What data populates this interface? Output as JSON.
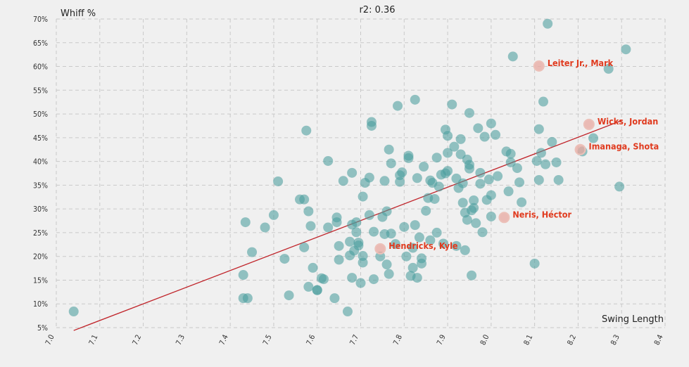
{
  "chart_data": {
    "type": "scatter",
    "title": "r2: 0.36",
    "xlabel": "Swing Length",
    "ylabel": "Whiff %",
    "xlim": [
      7.0,
      8.4
    ],
    "ylim": [
      5,
      70
    ],
    "x_ticks": [
      "7.0",
      "7.1",
      "7.2",
      "7.3",
      "7.4",
      "7.5",
      "7.6",
      "7.7",
      "7.8",
      "7.9",
      "8.0",
      "8.1",
      "8.2",
      "8.3",
      "8.4"
    ],
    "y_ticks": [
      "5%",
      "10%",
      "15%",
      "20%",
      "25%",
      "30%",
      "35%",
      "40%",
      "45%",
      "50%",
      "55%",
      "60%",
      "65%",
      "70%"
    ],
    "grid": true,
    "colors": {
      "points": "#4a9c9c",
      "highlight": "#e8a8a0",
      "label": "#e03a1e",
      "trend": "#c0242a",
      "background": "#f0f0f0"
    },
    "trendline": {
      "x": [
        7.04,
        8.3
      ],
      "y": [
        4.4,
        48.6
      ]
    },
    "highlighted": [
      {
        "name": "Leiter Jr., Mark",
        "x": 8.11,
        "y": 60.1
      },
      {
        "name": "Wicks, Jordan",
        "x": 8.225,
        "y": 47.8
      },
      {
        "name": "Imanaga, Shota",
        "x": 8.205,
        "y": 42.5
      },
      {
        "name": "Neris, Héctor",
        "x": 8.03,
        "y": 28.2
      },
      {
        "name": "Hendricks, Kyle",
        "x": 7.745,
        "y": 21.6
      }
    ],
    "points": [
      [
        7.04,
        8.4
      ],
      [
        7.43,
        11.2
      ],
      [
        7.44,
        11.2
      ],
      [
        7.43,
        16.1
      ],
      [
        7.435,
        27.2
      ],
      [
        7.45,
        20.9
      ],
      [
        7.48,
        26.1
      ],
      [
        7.5,
        28.7
      ],
      [
        7.51,
        35.8
      ],
      [
        7.525,
        19.5
      ],
      [
        7.535,
        11.8
      ],
      [
        7.56,
        32.0
      ],
      [
        7.57,
        32.0
      ],
      [
        7.57,
        21.9
      ],
      [
        7.575,
        46.5
      ],
      [
        7.58,
        13.6
      ],
      [
        7.58,
        29.5
      ],
      [
        7.585,
        26.4
      ],
      [
        7.59,
        17.6
      ],
      [
        7.6,
        12.9
      ],
      [
        7.6,
        12.9
      ],
      [
        7.61,
        15.4
      ],
      [
        7.615,
        15.2
      ],
      [
        7.625,
        26.1
      ],
      [
        7.625,
        40.1
      ],
      [
        7.64,
        11.2
      ],
      [
        7.645,
        28.2
      ],
      [
        7.645,
        27.2
      ],
      [
        7.65,
        22.2
      ],
      [
        7.65,
        19.3
      ],
      [
        7.66,
        35.9
      ],
      [
        7.67,
        8.4
      ],
      [
        7.675,
        20.2
      ],
      [
        7.675,
        23.1
      ],
      [
        7.68,
        15.5
      ],
      [
        7.68,
        37.6
      ],
      [
        7.68,
        26.7
      ],
      [
        7.685,
        21.2
      ],
      [
        7.69,
        27.2
      ],
      [
        7.69,
        25.1
      ],
      [
        7.695,
        22.3
      ],
      [
        7.695,
        22.9
      ],
      [
        7.7,
        14.4
      ],
      [
        7.705,
        18.7
      ],
      [
        7.705,
        20.1
      ],
      [
        7.705,
        32.6
      ],
      [
        7.71,
        35.5
      ],
      [
        7.72,
        28.7
      ],
      [
        7.72,
        36.6
      ],
      [
        7.725,
        48.3
      ],
      [
        7.725,
        47.5
      ],
      [
        7.73,
        15.2
      ],
      [
        7.73,
        25.2
      ],
      [
        7.745,
        20.0
      ],
      [
        7.75,
        28.3
      ],
      [
        7.755,
        35.9
      ],
      [
        7.755,
        24.7
      ],
      [
        7.76,
        29.5
      ],
      [
        7.76,
        18.3
      ],
      [
        7.765,
        42.5
      ],
      [
        7.765,
        16.3
      ],
      [
        7.77,
        24.8
      ],
      [
        7.77,
        39.6
      ],
      [
        7.78,
        22.6
      ],
      [
        7.785,
        51.7
      ],
      [
        7.79,
        37.1
      ],
      [
        7.79,
        35.7
      ],
      [
        7.795,
        37.7
      ],
      [
        7.8,
        26.2
      ],
      [
        7.805,
        20.0
      ],
      [
        7.81,
        41.2
      ],
      [
        7.81,
        40.7
      ],
      [
        7.815,
        15.9
      ],
      [
        7.82,
        21.8
      ],
      [
        7.82,
        17.6
      ],
      [
        7.825,
        53.0
      ],
      [
        7.825,
        26.6
      ],
      [
        7.83,
        36.5
      ],
      [
        7.83,
        15.5
      ],
      [
        7.835,
        24.0
      ],
      [
        7.84,
        18.5
      ],
      [
        7.84,
        19.6
      ],
      [
        7.845,
        38.9
      ],
      [
        7.85,
        29.6
      ],
      [
        7.855,
        32.3
      ],
      [
        7.86,
        36.0
      ],
      [
        7.86,
        23.4
      ],
      [
        7.865,
        35.5
      ],
      [
        7.87,
        32.1
      ],
      [
        7.875,
        25.0
      ],
      [
        7.875,
        40.8
      ],
      [
        7.88,
        34.7
      ],
      [
        7.885,
        37.2
      ],
      [
        7.89,
        22.7
      ],
      [
        7.895,
        46.7
      ],
      [
        7.895,
        37.5
      ],
      [
        7.9,
        45.4
      ],
      [
        7.9,
        41.8
      ],
      [
        7.9,
        38.0
      ],
      [
        7.91,
        52.0
      ],
      [
        7.915,
        43.1
      ],
      [
        7.92,
        22.2
      ],
      [
        7.92,
        36.4
      ],
      [
        7.925,
        34.4
      ],
      [
        7.93,
        44.7
      ],
      [
        7.93,
        41.5
      ],
      [
        7.935,
        35.4
      ],
      [
        7.935,
        31.3
      ],
      [
        7.94,
        29.2
      ],
      [
        7.94,
        21.3
      ],
      [
        7.945,
        27.7
      ],
      [
        7.945,
        40.4
      ],
      [
        7.95,
        50.2
      ],
      [
        7.95,
        39.3
      ],
      [
        7.95,
        38.5
      ],
      [
        7.955,
        29.7
      ],
      [
        7.955,
        16.0
      ],
      [
        7.96,
        31.8
      ],
      [
        7.96,
        30.2
      ],
      [
        7.965,
        27.0
      ],
      [
        7.97,
        47.0
      ],
      [
        7.975,
        37.6
      ],
      [
        7.975,
        35.3
      ],
      [
        7.98,
        25.1
      ],
      [
        7.985,
        45.2
      ],
      [
        7.99,
        31.9
      ],
      [
        7.995,
        36.2
      ],
      [
        8.0,
        48.0
      ],
      [
        8.0,
        32.9
      ],
      [
        8.0,
        28.4
      ],
      [
        8.01,
        45.6
      ],
      [
        8.015,
        36.9
      ],
      [
        8.035,
        42.1
      ],
      [
        8.04,
        33.7
      ],
      [
        8.045,
        39.8
      ],
      [
        8.045,
        41.6
      ],
      [
        8.06,
        38.6
      ],
      [
        8.065,
        35.6
      ],
      [
        8.07,
        31.4
      ],
      [
        8.05,
        62.1
      ],
      [
        8.1,
        18.5
      ],
      [
        8.105,
        40.1
      ],
      [
        8.11,
        46.8
      ],
      [
        8.11,
        36.1
      ],
      [
        8.115,
        41.8
      ],
      [
        8.12,
        52.6
      ],
      [
        8.125,
        39.4
      ],
      [
        8.13,
        69.0
      ],
      [
        8.14,
        44.1
      ],
      [
        8.15,
        39.8
      ],
      [
        8.155,
        36.1
      ],
      [
        8.21,
        42.1
      ],
      [
        8.235,
        44.9
      ],
      [
        8.27,
        59.5
      ],
      [
        8.295,
        34.7
      ],
      [
        8.31,
        63.6
      ]
    ]
  }
}
